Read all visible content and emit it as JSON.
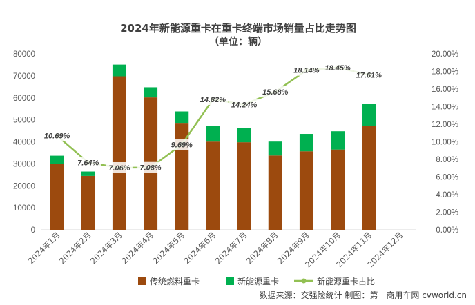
{
  "chart_data": {
    "type": "bar",
    "title": "2024年新能源重卡在重卡终端市场销量占比走势图",
    "subtitle": "（单位：辆）",
    "categories": [
      "2024年1月",
      "2024年2月",
      "2024年3月",
      "2024年4月",
      "2024年5月",
      "2024年6月",
      "2024年7月",
      "2024年8月",
      "2024年9月",
      "2024年10月",
      "2024年11月",
      "2024年12月"
    ],
    "series": [
      {
        "name": "传统燃料重卡",
        "type": "bar",
        "stacked": true,
        "color": "#9C4A0E",
        "values": [
          30100,
          24500,
          69800,
          60200,
          48600,
          40100,
          39800,
          33800,
          35700,
          36500,
          47100,
          null
        ]
      },
      {
        "name": "新能源重卡",
        "type": "bar",
        "stacked": true,
        "color": "#00B050",
        "values": [
          3600,
          2000,
          5300,
          4600,
          5200,
          7000,
          6600,
          6300,
          7900,
          8300,
          10000,
          null
        ]
      },
      {
        "name": "新能源重卡占比",
        "type": "line",
        "axis": "right",
        "color": "#92C053",
        "values": [
          10.69,
          7.64,
          7.06,
          7.08,
          9.69,
          14.82,
          14.24,
          15.68,
          18.14,
          18.45,
          17.61,
          null
        ],
        "labels": [
          "10.69%",
          "7.64%",
          "7.06%",
          "7.08%",
          "9.69%",
          "14.82%",
          "14.24%",
          "15.68%",
          "18.14%",
          "18.45%",
          "17.61%",
          ""
        ]
      }
    ],
    "ylim": [
      0,
      80000
    ],
    "yticks": [
      "0",
      "10000",
      "20000",
      "30000",
      "40000",
      "50000",
      "60000",
      "70000",
      "80000"
    ],
    "y2lim": [
      0,
      20
    ],
    "y2ticks": [
      "0.00%",
      "2.00%",
      "4.00%",
      "6.00%",
      "8.00%",
      "10.00%",
      "12.00%",
      "14.00%",
      "16.00%",
      "18.00%",
      "20.00%"
    ],
    "grid": false,
    "legend": "bottom"
  },
  "source_note": "数据来源：交强险统计  制图：第一商用车网 cvworld.cn"
}
